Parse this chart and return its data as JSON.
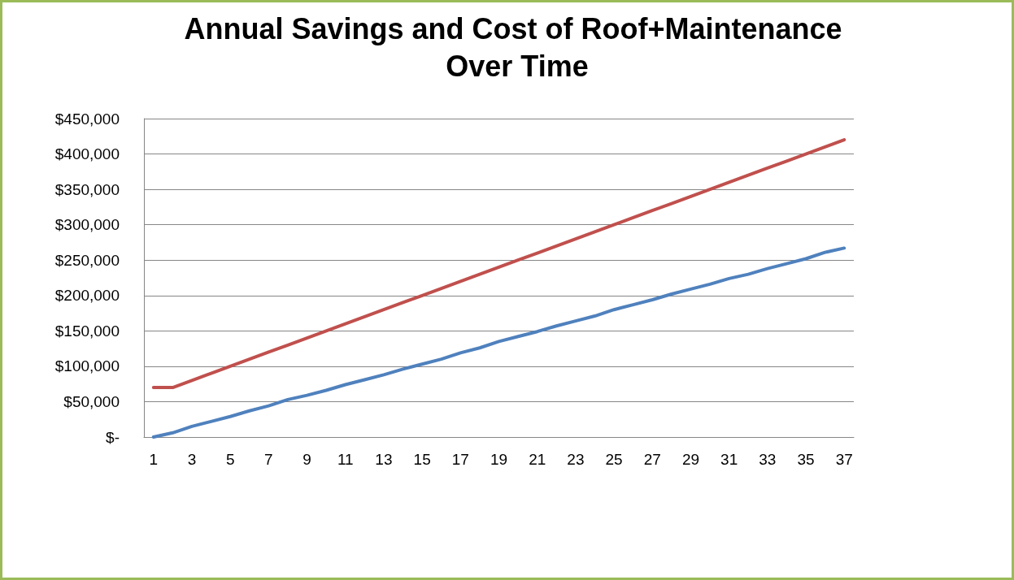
{
  "chart_data": {
    "type": "line",
    "title": "Annual Savings and Cost of Roof+Maintenance Over Time",
    "x": [
      1,
      2,
      3,
      4,
      5,
      6,
      7,
      8,
      9,
      10,
      11,
      12,
      13,
      14,
      15,
      16,
      17,
      18,
      19,
      20,
      21,
      22,
      23,
      24,
      25,
      26,
      27,
      28,
      29,
      30,
      31,
      32,
      33,
      34,
      35,
      36,
      37
    ],
    "xlim": [
      0.5,
      37.5
    ],
    "xticks": [
      1,
      3,
      5,
      7,
      9,
      11,
      13,
      15,
      17,
      19,
      21,
      23,
      25,
      27,
      29,
      31,
      33,
      35,
      37
    ],
    "series": [
      {
        "color": "#4f81bd",
        "values": [
          0,
          6000,
          15000,
          22000,
          29000,
          37000,
          44000,
          53000,
          59000,
          66000,
          74000,
          81000,
          88000,
          96000,
          103000,
          110000,
          119000,
          126000,
          135000,
          142000,
          149000,
          157000,
          164000,
          171000,
          180000,
          187000,
          194000,
          202000,
          209000,
          216000,
          224000,
          230000,
          238000,
          245000,
          252000,
          261000,
          267000
        ]
      },
      {
        "color": "#c0504d",
        "values": [
          70000,
          70000,
          80000,
          90000,
          100000,
          110000,
          120000,
          130000,
          140000,
          150000,
          160000,
          170000,
          180000,
          190000,
          200000,
          210000,
          220000,
          230000,
          240000,
          250000,
          260000,
          270000,
          280000,
          290000,
          300000,
          310000,
          320000,
          330000,
          340000,
          350000,
          360000,
          370000,
          380000,
          390000,
          400000,
          410000,
          420000
        ]
      }
    ],
    "ylim": [
      0,
      450000
    ],
    "yticks": [
      {
        "value": 0,
        "label": "$-"
      },
      {
        "value": 50000,
        "label": "$50,000"
      },
      {
        "value": 100000,
        "label": "$100,000"
      },
      {
        "value": 150000,
        "label": "$150,000"
      },
      {
        "value": 200000,
        "label": "$200,000"
      },
      {
        "value": 250000,
        "label": "$250,000"
      },
      {
        "value": 300000,
        "label": "$300,000"
      },
      {
        "value": 350000,
        "label": "$350,000"
      },
      {
        "value": 400000,
        "label": "$400,000"
      },
      {
        "value": 450000,
        "label": "$450,000"
      }
    ],
    "grid": "y",
    "marker": "none",
    "line_style": "solid"
  }
}
